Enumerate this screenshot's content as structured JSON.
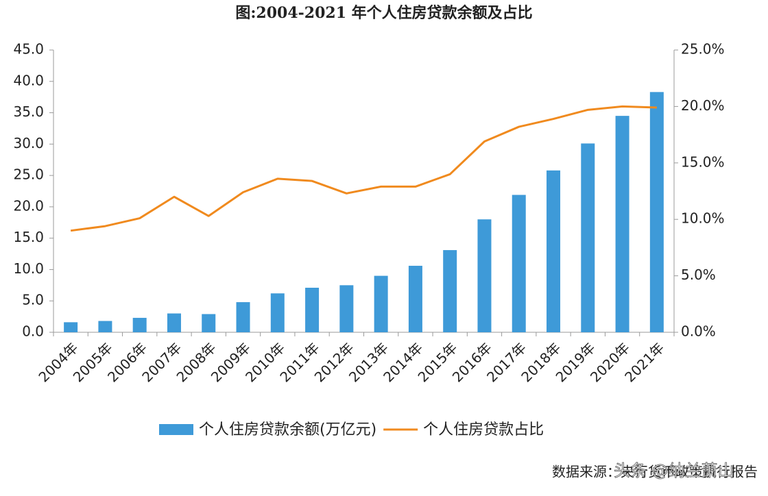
{
  "chart_data": {
    "type": "bar-line",
    "title": "图:2004-2021 年个人住房贷款余额及占比",
    "categories": [
      "2004年",
      "2005年",
      "2006年",
      "2007年",
      "2008年",
      "2009年",
      "2010年",
      "2011年",
      "2012年",
      "2013年",
      "2014年",
      "2015年",
      "2016年",
      "2017年",
      "2018年",
      "2019年",
      "2020年",
      "2021年"
    ],
    "series": [
      {
        "name": "个人住房贷款余额(万亿元)",
        "color": "#3e9ad8",
        "type": "bar",
        "values": [
          1.6,
          1.8,
          2.3,
          3.0,
          2.9,
          4.8,
          6.2,
          7.1,
          7.5,
          9.0,
          10.6,
          13.1,
          18.0,
          21.9,
          25.8,
          30.1,
          34.5,
          38.3
        ]
      },
      {
        "name": "个人住房贷款占比",
        "color": "#f08a1e",
        "type": "line",
        "axis": "y2",
        "values": [
          9.0,
          9.4,
          10.1,
          12.0,
          10.3,
          12.4,
          13.6,
          13.4,
          12.3,
          12.9,
          12.9,
          14.0,
          16.9,
          18.2,
          18.9,
          19.7,
          20.0,
          19.9
        ]
      }
    ],
    "ylim": [
      0,
      45
    ],
    "yticks": [
      {
        "value": 0,
        "label": "0.0"
      },
      {
        "value": 5,
        "label": "5.0"
      },
      {
        "value": 10,
        "label": "10.0"
      },
      {
        "value": 15,
        "label": "15.0"
      },
      {
        "value": 20,
        "label": "20.0"
      },
      {
        "value": 25,
        "label": "25.0"
      },
      {
        "value": 30,
        "label": "30.0"
      },
      {
        "value": 35,
        "label": "35.0"
      },
      {
        "value": 40,
        "label": "40.0"
      },
      {
        "value": 45,
        "label": "45.0"
      }
    ],
    "y2lim": [
      0,
      25
    ],
    "y2ticks": [
      {
        "value": 0,
        "label": "0.0%"
      },
      {
        "value": 5,
        "label": "5.0%"
      },
      {
        "value": 10,
        "label": "10.0%"
      },
      {
        "value": 15,
        "label": "15.0%"
      },
      {
        "value": 20,
        "label": "20.0%"
      },
      {
        "value": 25,
        "label": "25.0%"
      }
    ],
    "source": "数据来源：央行货币政策执行报告",
    "watermark": "头条 @纳兰萧山"
  }
}
